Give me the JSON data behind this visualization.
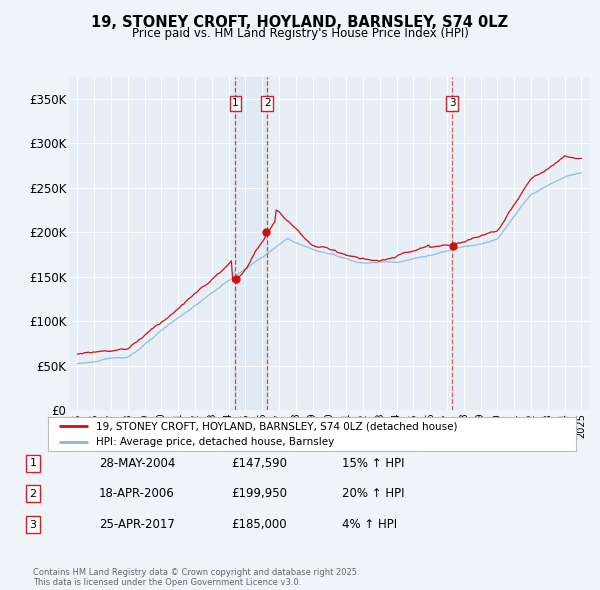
{
  "title": "19, STONEY CROFT, HOYLAND, BARNSLEY, S74 0LZ",
  "subtitle": "Price paid vs. HM Land Registry's House Price Index (HPI)",
  "legend_label_red": "19, STONEY CROFT, HOYLAND, BARNSLEY, S74 0LZ (detached house)",
  "legend_label_blue": "HPI: Average price, detached house, Barnsley",
  "footer": "Contains HM Land Registry data © Crown copyright and database right 2025.\nThis data is licensed under the Open Government Licence v3.0.",
  "transactions": [
    {
      "num": "1",
      "date": "28-MAY-2004",
      "price": "£147,590",
      "change": "15% ↑ HPI",
      "year": 2004.41
    },
    {
      "num": "2",
      "date": "18-APR-2006",
      "price": "£199,950",
      "change": "20% ↑ HPI",
      "year": 2006.29
    },
    {
      "num": "3",
      "date": "25-APR-2017",
      "price": "£185,000",
      "change": "4% ↑ HPI",
      "year": 2017.32
    }
  ],
  "sale_prices": [
    147590,
    199950,
    185000
  ],
  "vline_years": [
    2004.41,
    2006.29,
    2017.32
  ],
  "background_color": "#f0f4f8",
  "plot_bg_color": "#e8eef5",
  "shade_color": "#d0e4f5",
  "grid_color": "#ffffff",
  "red_color": "#cc1111",
  "blue_color": "#88b8d8",
  "ylim": [
    0,
    375000
  ],
  "xlim": [
    1994.5,
    2025.5
  ],
  "yticks": [
    0,
    50000,
    100000,
    150000,
    200000,
    250000,
    300000,
    350000
  ],
  "ytick_labels": [
    "£0",
    "£50K",
    "£100K",
    "£150K",
    "£200K",
    "£250K",
    "£300K",
    "£350K"
  ]
}
